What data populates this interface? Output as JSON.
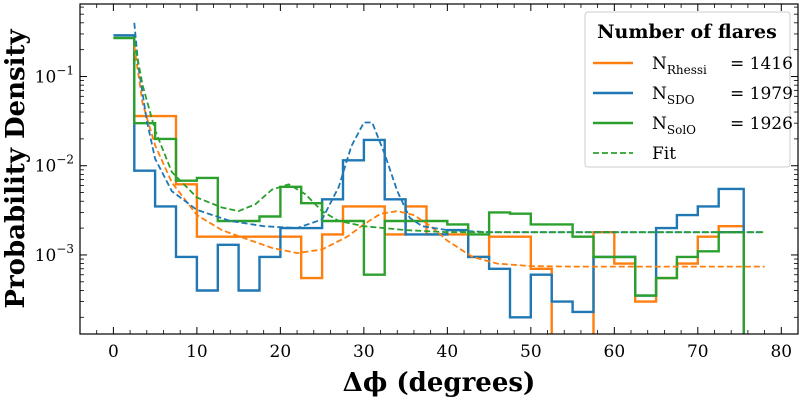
{
  "chart_data": {
    "type": "line",
    "title": "",
    "xlabel": "Δϕ (degrees)",
    "ylabel": "Probability Density",
    "xlim": [
      -4,
      82
    ],
    "ylim": [
      0.00013,
      0.65
    ],
    "yscale": "log",
    "grid": false,
    "legend_placement": "top-right",
    "x_ticks": [
      0,
      10,
      20,
      30,
      40,
      50,
      60,
      70,
      80
    ],
    "y_ticks": [
      {
        "value": 0.1,
        "mantissa": "10",
        "exp": "−1"
      },
      {
        "value": 0.01,
        "mantissa": "10",
        "exp": "−2"
      },
      {
        "value": 0.001,
        "mantissa": "10",
        "exp": "−3"
      }
    ],
    "legend": {
      "title": "Number of flares",
      "entries": [
        {
          "main": "N",
          "sub": "Rhessi",
          "value": "= 1416",
          "series": "Rhessi"
        },
        {
          "main": "N",
          "sub": "SDO",
          "value": "= 1979",
          "series": "SDO"
        },
        {
          "main": "N",
          "sub": "SolO",
          "value": "= 1926",
          "series": "SolO"
        },
        {
          "main": "Fit",
          "sub": "",
          "value": "",
          "series": "Fit"
        }
      ]
    },
    "histograms": [
      {
        "key": "Rhessi",
        "color": "#ff7f0e",
        "edges": [
          2.5,
          5,
          7.5,
          10,
          12.5,
          15,
          17.5,
          20,
          22.5,
          25,
          27.5,
          30,
          32.5,
          35,
          37.5,
          40,
          42.5,
          45,
          47.5,
          50,
          52.5,
          55,
          57.5,
          60,
          62.5,
          65,
          67.5,
          70,
          72.5,
          75.5
        ],
        "values": [
          0.036,
          0.036,
          0.0062,
          0.0016,
          0.0016,
          0.0016,
          0.0016,
          0.0016,
          0.00055,
          0.0017,
          0.0035,
          0.0035,
          0.0017,
          0.0035,
          0.0017,
          0.0017,
          0.00095,
          0.0016,
          0.0016,
          0.0007,
          0.0001,
          0.0001,
          0.0018,
          0.0008,
          0.0003,
          0.00055,
          0.0008,
          0.0016,
          0.0021
        ]
      },
      {
        "key": "SDO",
        "color": "#1f77b4",
        "edges": [
          0,
          2.5,
          5,
          7.5,
          10,
          12.5,
          15,
          17.5,
          20,
          22.5,
          25,
          27.5,
          30,
          32.5,
          35,
          37.5,
          40,
          42.5,
          45,
          47.5,
          50,
          52.5,
          55,
          57.5,
          60,
          62.5,
          65,
          67.5,
          70,
          72.5,
          75.5
        ],
        "values": [
          0.29,
          0.0088,
          0.0035,
          0.00095,
          0.0004,
          0.0013,
          0.0004,
          0.00095,
          0.002,
          0.002,
          0.0042,
          0.0115,
          0.0195,
          0.0042,
          0.0017,
          0.0017,
          0.0019,
          0.00095,
          0.0007,
          0.0002,
          0.0006,
          0.0003,
          0.00023,
          0.00095,
          0.00095,
          0.00035,
          0.002,
          0.0028,
          0.0035,
          0.0055
        ]
      },
      {
        "key": "SolO",
        "color": "#2ca02c",
        "edges": [
          0,
          2.5,
          5,
          7.5,
          10,
          12.5,
          15,
          17.5,
          20,
          22.5,
          25,
          27.5,
          30,
          32.5,
          35,
          37.5,
          40,
          42.5,
          45,
          47.5,
          50,
          52.5,
          55,
          57.5,
          60,
          62.5,
          65,
          67.5,
          70,
          72.5,
          75.5
        ],
        "values": [
          0.27,
          0.03,
          0.02,
          0.0068,
          0.0073,
          0.0024,
          0.0024,
          0.0027,
          0.0058,
          0.0038,
          0.0024,
          0.0024,
          0.0006,
          0.0024,
          0.0024,
          0.0024,
          0.0022,
          0.0017,
          0.003,
          0.0029,
          0.0022,
          0.0022,
          0.0016,
          0.00095,
          0.00095,
          0.00035,
          0.00055,
          0.00095,
          0.0011,
          0.0018
        ]
      }
    ],
    "fits": [
      {
        "key": "Rhessi-fit",
        "color": "#ff7f0e",
        "x": [
          2.5,
          3.5,
          5,
          7,
          10,
          13,
          16,
          19,
          22,
          25,
          28,
          30,
          32,
          34,
          36,
          38,
          40,
          43,
          46,
          50,
          55,
          60,
          65,
          70,
          74,
          78
        ],
        "y": [
          0.22,
          0.05,
          0.017,
          0.0065,
          0.0028,
          0.0019,
          0.0015,
          0.0012,
          0.00105,
          0.00115,
          0.0016,
          0.0022,
          0.0029,
          0.0031,
          0.0028,
          0.0021,
          0.00145,
          0.00095,
          0.0008,
          0.00075,
          0.00074,
          0.00074,
          0.00074,
          0.00074,
          0.00074,
          0.00074
        ]
      },
      {
        "key": "SDO-fit",
        "color": "#1f77b4",
        "x": [
          2.5,
          3,
          4,
          5,
          7,
          10,
          14,
          18,
          22,
          25,
          27,
          28.5,
          30,
          31,
          32.5,
          34,
          35.5,
          37,
          40,
          45,
          55,
          65,
          78
        ],
        "y": [
          0.4,
          0.13,
          0.032,
          0.012,
          0.0052,
          0.0032,
          0.0024,
          0.0021,
          0.002,
          0.0025,
          0.0058,
          0.0165,
          0.0305,
          0.0305,
          0.0135,
          0.0052,
          0.0026,
          0.0021,
          0.0019,
          0.0018,
          0.0018,
          0.0018,
          0.0018
        ]
      },
      {
        "key": "SolO-fit",
        "color": "#2ca02c",
        "x": [
          2.5,
          3.5,
          5,
          7,
          10,
          13,
          15,
          17,
          19,
          21,
          23,
          25,
          27,
          30,
          35,
          40,
          50,
          60,
          70,
          78
        ],
        "y": [
          0.25,
          0.08,
          0.025,
          0.0085,
          0.0044,
          0.0034,
          0.0031,
          0.0037,
          0.0054,
          0.0062,
          0.0048,
          0.0031,
          0.0024,
          0.0021,
          0.0019,
          0.0018,
          0.0018,
          0.0018,
          0.0018,
          0.0018
        ]
      }
    ]
  }
}
